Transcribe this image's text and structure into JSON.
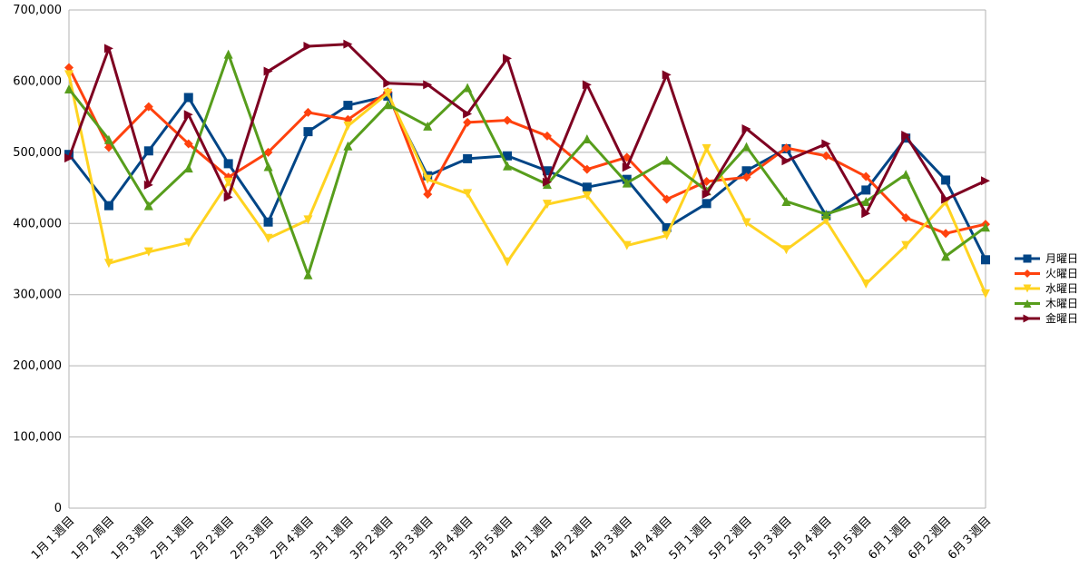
{
  "chart_data": {
    "type": "line",
    "title": "",
    "xlabel": "",
    "ylabel": "",
    "ylim": [
      0,
      700000
    ],
    "yticks": [
      0,
      100000,
      200000,
      300000,
      400000,
      500000,
      600000,
      700000
    ],
    "ytick_labels": [
      "0",
      "100,000",
      "200,000",
      "300,000",
      "400,000",
      "500,000",
      "600,000",
      "700,000"
    ],
    "grid": true,
    "legend_position": "right",
    "categories": [
      "1月１週目",
      "1月２周目",
      "1月３週目",
      "2月１週目",
      "2月２週目",
      "2月３週目",
      "2月４週目",
      "3月１週目",
      "3月２週目",
      "3月３週目",
      "3月４週目",
      "3月５週目",
      "4月１週目",
      "4月２週目",
      "4月３週目",
      "4月４週目",
      "5月１週目",
      "5月２週目",
      "5月３週目",
      "5月４週目",
      "5月５週目",
      "6月１週目",
      "6月２週目",
      "6月３週目"
    ],
    "series": [
      {
        "name": "月曜日",
        "color": "#004586",
        "marker": "square",
        "values": [
          497000,
          425000,
          502000,
          577000,
          484000,
          402000,
          529000,
          566000,
          579000,
          467000,
          491000,
          495000,
          474000,
          451000,
          462000,
          394000,
          428000,
          474000,
          505000,
          411000,
          447000,
          520000,
          461000,
          349000
        ]
      },
      {
        "name": "火曜日",
        "color": "#ff420e",
        "marker": "diamond",
        "values": [
          619000,
          507000,
          564000,
          512000,
          465000,
          500000,
          556000,
          546000,
          585000,
          441000,
          542000,
          545000,
          523000,
          476000,
          493000,
          434000,
          459000,
          465000,
          506000,
          495000,
          466000,
          408000,
          386000,
          399000
        ]
      },
      {
        "name": "水曜日",
        "color": "#ffd320",
        "marker": "triangle-down",
        "values": [
          609000,
          344000,
          360000,
          373000,
          458000,
          379000,
          405000,
          537000,
          583000,
          462000,
          442000,
          346000,
          427000,
          439000,
          369000,
          383000,
          505000,
          401000,
          363000,
          404000,
          315000,
          369000,
          430000,
          301000
        ]
      },
      {
        "name": "木曜日",
        "color": "#579d1c",
        "marker": "triangle-up",
        "values": [
          589000,
          518000,
          425000,
          478000,
          638000,
          480000,
          328000,
          509000,
          567000,
          537000,
          591000,
          481000,
          455000,
          519000,
          457000,
          489000,
          446000,
          508000,
          431000,
          413000,
          431000,
          469000,
          354000,
          395000
        ]
      },
      {
        "name": "金曜日",
        "color": "#7e0021",
        "marker": "triangle-right",
        "values": [
          492000,
          646000,
          454000,
          553000,
          437000,
          614000,
          649000,
          652000,
          597000,
          595000,
          554000,
          632000,
          458000,
          595000,
          479000,
          609000,
          441000,
          533000,
          488000,
          512000,
          414000,
          524000,
          434000,
          460000
        ]
      }
    ]
  }
}
